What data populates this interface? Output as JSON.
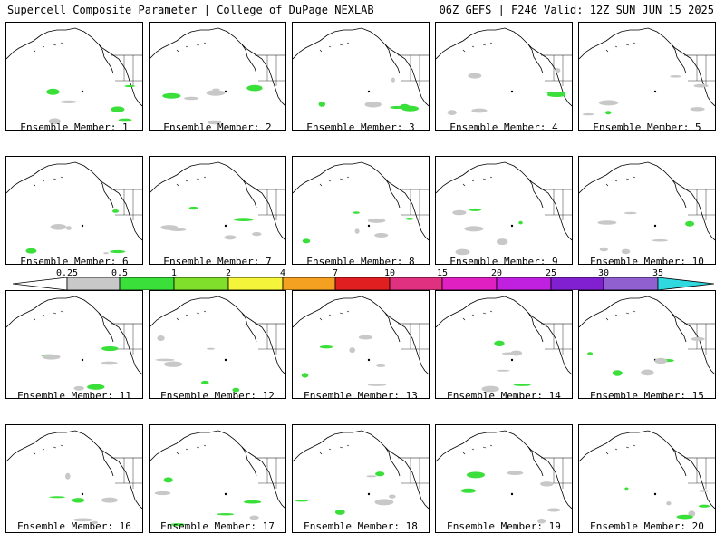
{
  "header": {
    "title": "Supercell Composite Parameter | College of DuPage NEXLAB",
    "run_info": "06Z GEFS | F246 Valid: 12Z SUN JUN 15 2025"
  },
  "colorbar": {
    "labels": [
      "0.25",
      "0.5",
      "1",
      "2",
      "4",
      "7",
      "10",
      "15",
      "20",
      "25",
      "30",
      "35"
    ],
    "colors": [
      "#c8c8c8",
      "#3adf3a",
      "#7fdf2a",
      "#f4f43a",
      "#f4a020",
      "#e02020",
      "#e03080",
      "#e020c0",
      "#c020e0",
      "#8020d0",
      "#9060d0",
      "#30d8e0"
    ]
  },
  "panels": [
    {
      "member": "Ensemble Member: 1"
    },
    {
      "member": "Ensemble Member: 2"
    },
    {
      "member": "Ensemble Member: 3"
    },
    {
      "member": "Ensemble Member: 4"
    },
    {
      "member": "Ensemble Member: 5"
    },
    {
      "member": "Ensemble Member: 6"
    },
    {
      "member": "Ensemble Member: 7"
    },
    {
      "member": "Ensemble Member: 8"
    },
    {
      "member": "Ensemble Member: 9"
    },
    {
      "member": "Ensemble Member: 10"
    },
    {
      "member": "Ensemble Member: 11"
    },
    {
      "member": "Ensemble Member: 12"
    },
    {
      "member": "Ensemble Member: 13"
    },
    {
      "member": "Ensemble Member: 14"
    },
    {
      "member": "Ensemble Member: 15"
    },
    {
      "member": "Ensemble Member: 16"
    },
    {
      "member": "Ensemble Member: 17"
    },
    {
      "member": "Ensemble Member: 18"
    },
    {
      "member": "Ensemble Member: 19"
    },
    {
      "member": "Ensemble Member: 20"
    }
  ]
}
